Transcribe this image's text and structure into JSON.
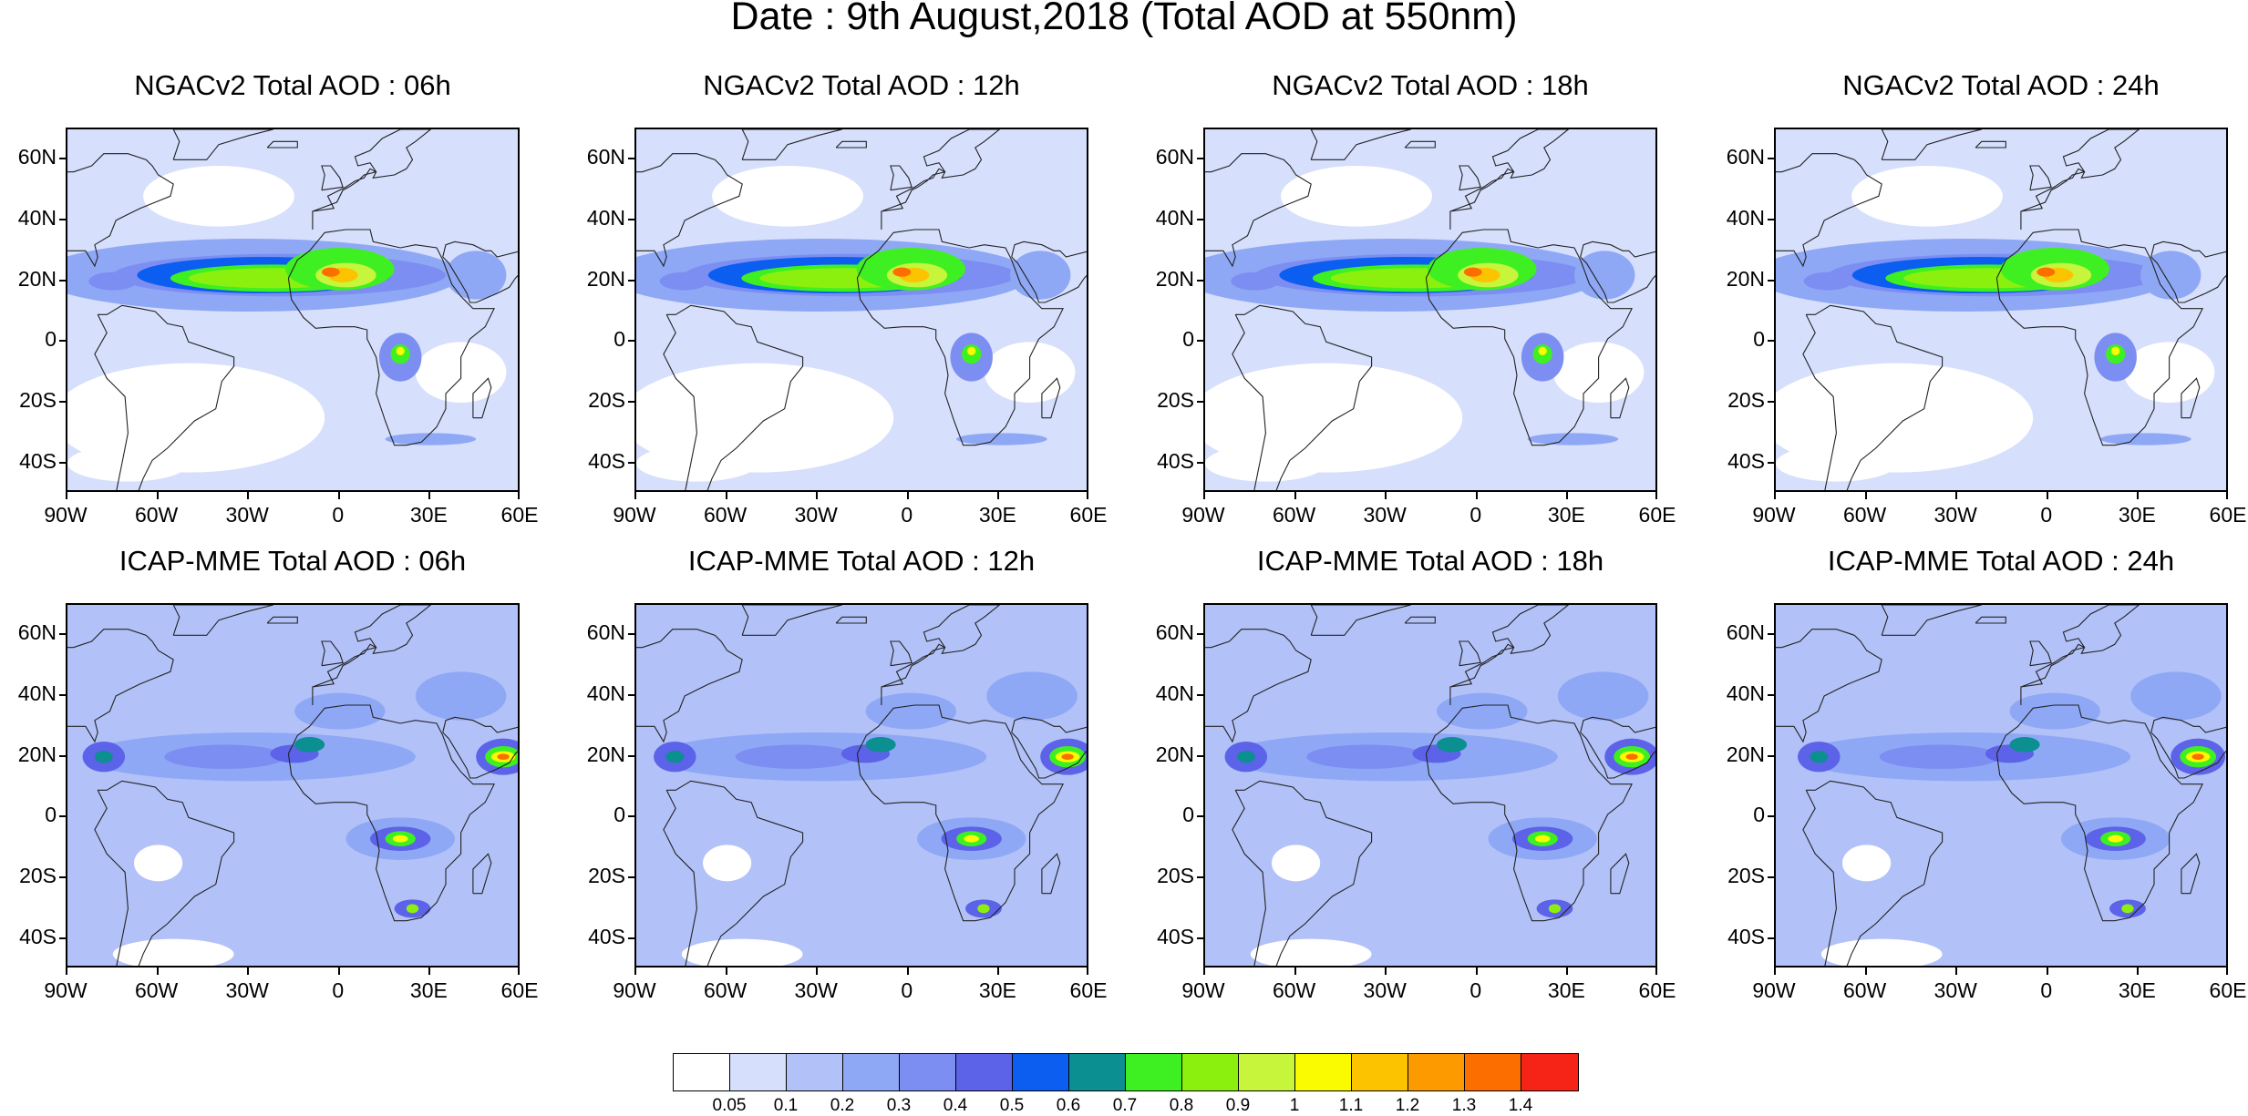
{
  "figure": {
    "title": "Date : 9th August,2018 (Total AOD at 550nm)"
  },
  "axes": {
    "y_labels": [
      "60N",
      "40N",
      "20N",
      "0",
      "20S",
      "40S"
    ],
    "y_values": [
      60,
      40,
      20,
      0,
      -20,
      -40
    ],
    "x_labels": [
      "90W",
      "60W",
      "30W",
      "0",
      "30E",
      "60E"
    ],
    "x_values": [
      -90,
      -60,
      -30,
      0,
      30,
      60
    ],
    "lat_range": [
      -50,
      70
    ],
    "lon_range": [
      -90,
      60
    ]
  },
  "panels": [
    {
      "title": "NGACv2 Total AOD : 06h",
      "model": "NGACv2",
      "lead": "06h"
    },
    {
      "title": "NGACv2 Total AOD : 12h",
      "model": "NGACv2",
      "lead": "12h"
    },
    {
      "title": "NGACv2 Total AOD : 18h",
      "model": "NGACv2",
      "lead": "18h"
    },
    {
      "title": "NGACv2 Total AOD : 24h",
      "model": "NGACv2",
      "lead": "24h"
    },
    {
      "title": "ICAP-MME Total AOD : 06h",
      "model": "ICAP-MME",
      "lead": "06h"
    },
    {
      "title": "ICAP-MME Total AOD : 12h",
      "model": "ICAP-MME",
      "lead": "12h"
    },
    {
      "title": "ICAP-MME Total AOD : 18h",
      "model": "ICAP-MME",
      "lead": "18h"
    },
    {
      "title": "ICAP-MME Total AOD : 24h",
      "model": "ICAP-MME",
      "lead": "24h"
    }
  ],
  "colorbar": {
    "labels": [
      "0.05",
      "0.1",
      "0.2",
      "0.3",
      "0.4",
      "0.5",
      "0.6",
      "0.7",
      "0.8",
      "0.9",
      "1",
      "1.1",
      "1.2",
      "1.3",
      "1.4"
    ],
    "colors": [
      "#ffffff",
      "#d6dffc",
      "#b2c2f8",
      "#8fa8f5",
      "#7d8ef2",
      "#5c63e8",
      "#0b5ef0",
      "#0b8f90",
      "#3ef021",
      "#8cf00f",
      "#c6f53c",
      "#fafa00",
      "#fcc400",
      "#fc9a00",
      "#fc6e00",
      "#f52416"
    ]
  }
}
